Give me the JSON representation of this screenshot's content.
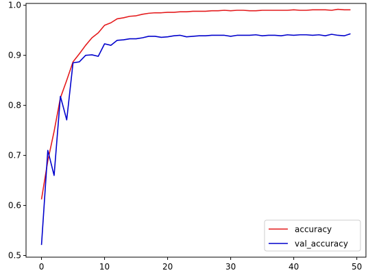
{
  "chart_data": {
    "type": "line",
    "title": "",
    "xlabel": "",
    "ylabel": "",
    "xlim": [
      -2.45,
      51.45
    ],
    "ylim": [
      0.4966,
      1.0037
    ],
    "grid": false,
    "legend_position": "lower-right",
    "x_ticks": [
      0,
      10,
      20,
      30,
      40,
      50
    ],
    "y_ticks": [
      0.5,
      0.6,
      0.7,
      0.8,
      0.9,
      1.0
    ],
    "x_tick_labels": [
      "0",
      "10",
      "20",
      "30",
      "40",
      "50"
    ],
    "y_tick_labels": [
      "0.5",
      "0.6",
      "0.7",
      "0.8",
      "0.9",
      "1.0"
    ],
    "x": [
      0,
      1,
      2,
      3,
      4,
      5,
      6,
      7,
      8,
      9,
      10,
      11,
      12,
      13,
      14,
      15,
      16,
      17,
      18,
      19,
      20,
      21,
      22,
      23,
      24,
      25,
      26,
      27,
      28,
      29,
      30,
      31,
      32,
      33,
      34,
      35,
      36,
      37,
      38,
      39,
      40,
      41,
      42,
      43,
      44,
      45,
      46,
      47,
      48,
      49
    ],
    "series": [
      {
        "name": "accuracy",
        "color": "#e41a1c",
        "values": [
          0.612,
          0.689,
          0.748,
          0.815,
          0.85,
          0.887,
          0.903,
          0.92,
          0.935,
          0.945,
          0.96,
          0.965,
          0.973,
          0.975,
          0.978,
          0.979,
          0.982,
          0.984,
          0.985,
          0.985,
          0.986,
          0.986,
          0.987,
          0.987,
          0.988,
          0.988,
          0.988,
          0.989,
          0.989,
          0.99,
          0.989,
          0.99,
          0.99,
          0.989,
          0.989,
          0.99,
          0.99,
          0.99,
          0.99,
          0.99,
          0.991,
          0.99,
          0.99,
          0.991,
          0.991,
          0.991,
          0.99,
          0.992,
          0.991,
          0.991
        ]
      },
      {
        "name": "val_accuracy",
        "color": "#0000cc",
        "values": [
          0.521,
          0.71,
          0.66,
          0.818,
          0.771,
          0.885,
          0.887,
          0.9,
          0.901,
          0.898,
          0.923,
          0.92,
          0.93,
          0.931,
          0.933,
          0.933,
          0.935,
          0.938,
          0.938,
          0.936,
          0.937,
          0.939,
          0.94,
          0.937,
          0.938,
          0.939,
          0.939,
          0.94,
          0.94,
          0.94,
          0.938,
          0.94,
          0.94,
          0.94,
          0.941,
          0.939,
          0.94,
          0.94,
          0.939,
          0.941,
          0.94,
          0.941,
          0.941,
          0.94,
          0.941,
          0.939,
          0.942,
          0.94,
          0.939,
          0.943
        ]
      }
    ]
  }
}
